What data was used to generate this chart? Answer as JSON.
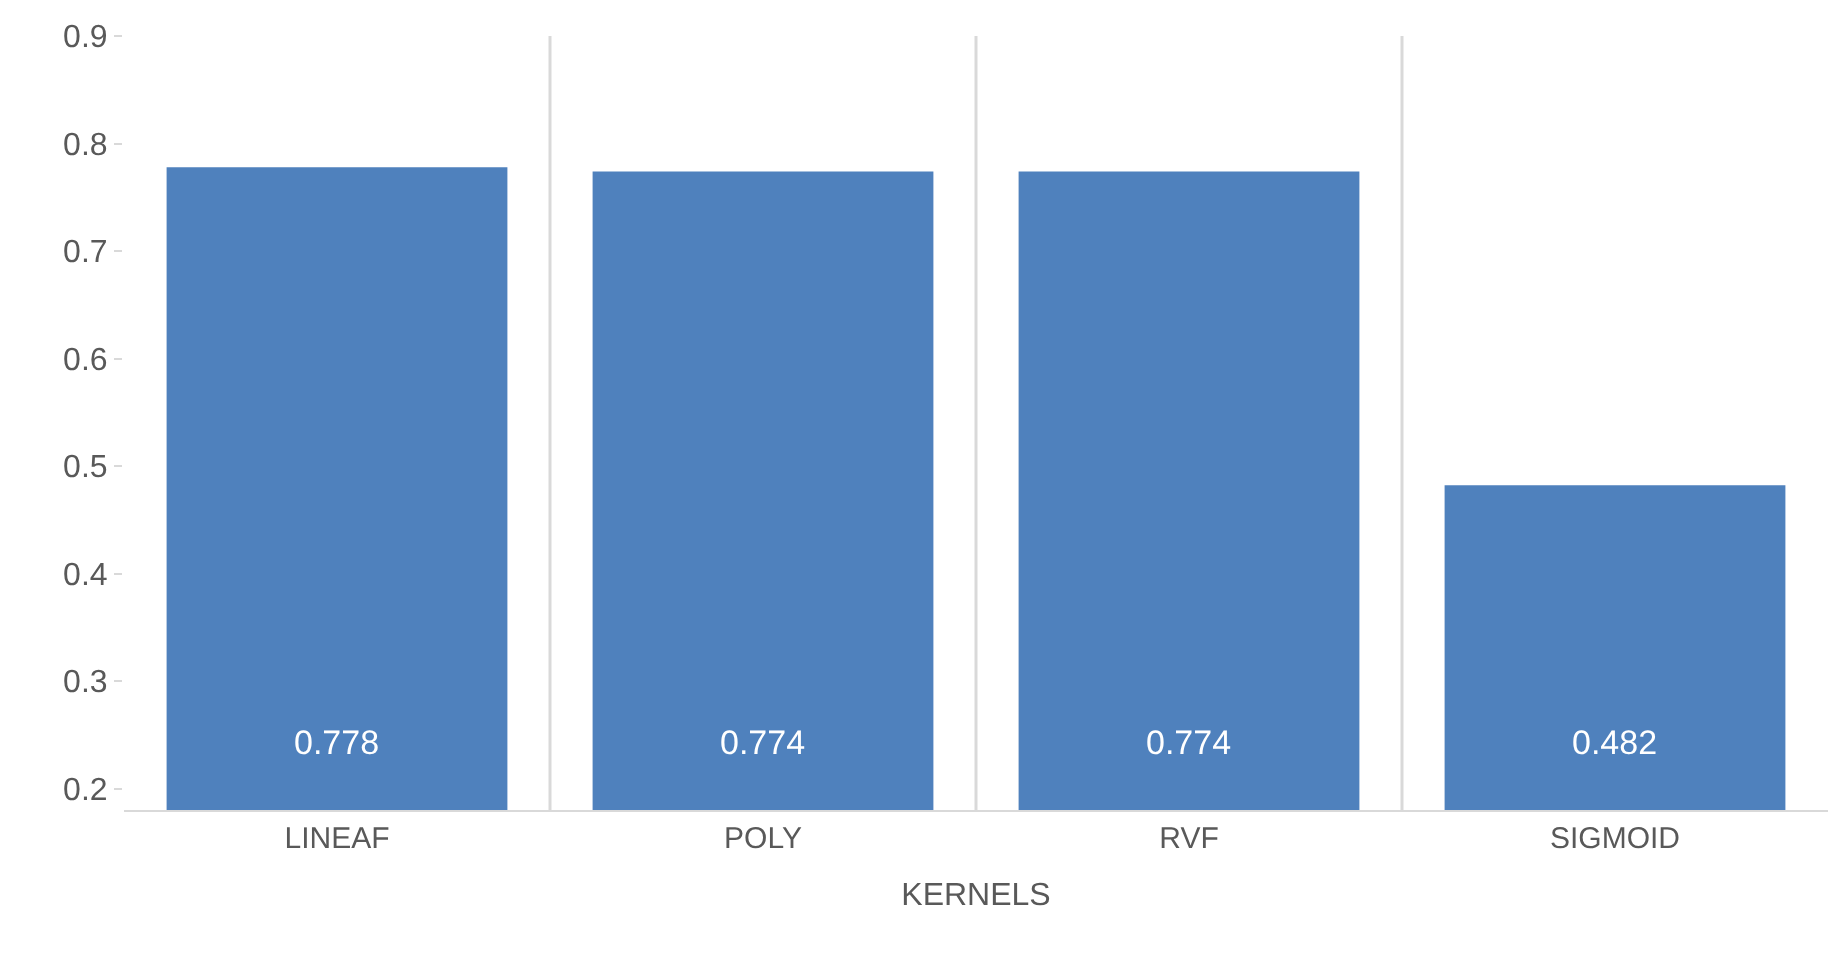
{
  "chart_data": {
    "type": "bar",
    "xlabel": "KERNELS",
    "categories": [
      "LINEAF",
      "POLY",
      "RVF",
      "SIGMOID"
    ],
    "values": [
      0.778,
      0.774,
      0.774,
      0.482
    ],
    "color": "#4f81bd",
    "data_labels": true,
    "ylim": [
      0.18,
      0.9
    ],
    "yticks": [
      0.2,
      0.3,
      0.4,
      0.5,
      0.6,
      0.7,
      0.8,
      0.9
    ],
    "grid": "x",
    "legend": false
  }
}
